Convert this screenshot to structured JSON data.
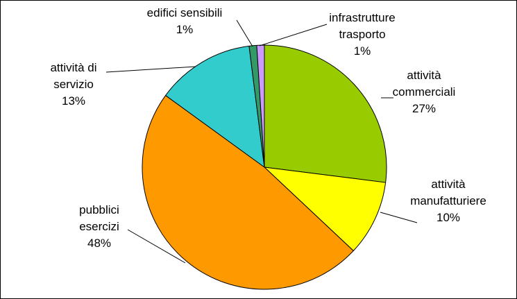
{
  "chart_data": {
    "type": "pie",
    "title": "",
    "slices": [
      {
        "label_lines": [
          "attività",
          "commerciali"
        ],
        "pct_label": "27%",
        "value": 27,
        "color": "#99CC00"
      },
      {
        "label_lines": [
          "attività",
          "manufatturiere"
        ],
        "pct_label": "10%",
        "value": 10,
        "color": "#FFFF00"
      },
      {
        "label_lines": [
          "pubblici",
          "esercizi"
        ],
        "pct_label": "48%",
        "value": 48,
        "color": "#FF9900"
      },
      {
        "label_lines": [
          "attività di",
          "servizio"
        ],
        "pct_label": "13%",
        "value": 13,
        "color": "#33CCCC"
      },
      {
        "label_lines": [
          "edifici sensibili"
        ],
        "pct_label": "1%",
        "value": 1,
        "color": "#339966"
      },
      {
        "label_lines": [
          "infrastrutture",
          "trasporto"
        ],
        "pct_label": "1%",
        "value": 1,
        "color": "#CC99FF"
      }
    ]
  }
}
